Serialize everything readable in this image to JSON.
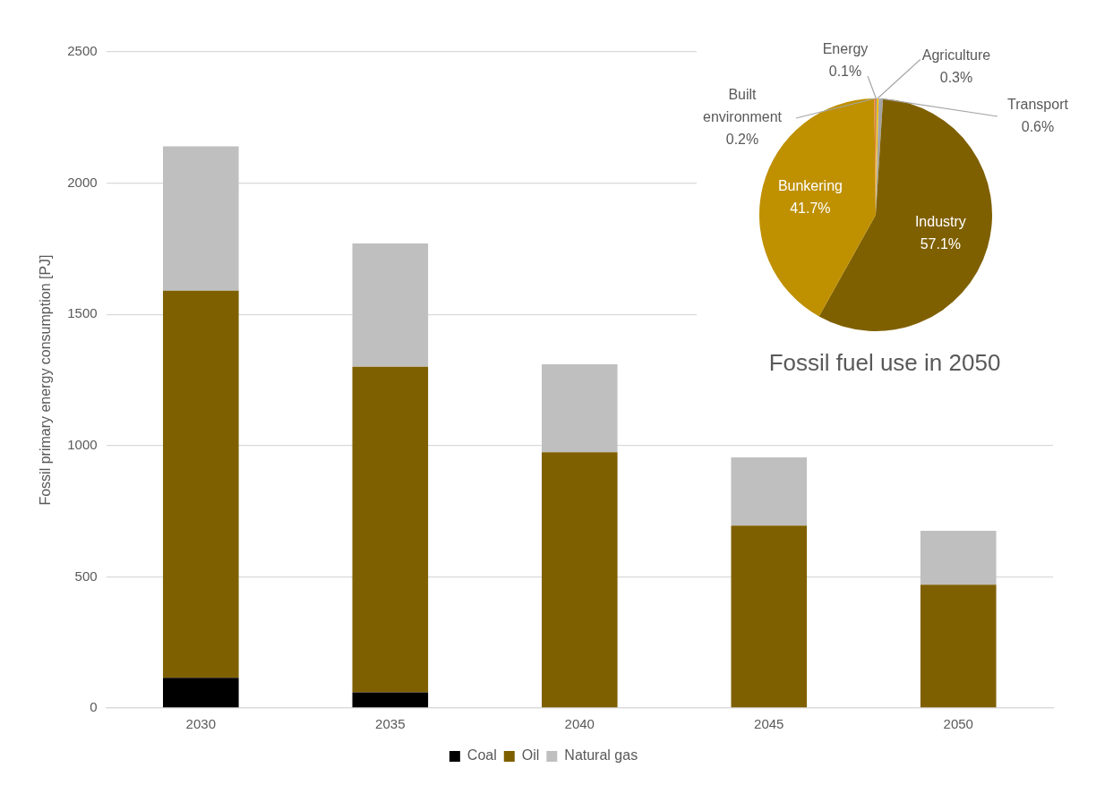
{
  "chart_data": [
    {
      "type": "bar",
      "ylabel": "Fossil primary energy consumption [PJ]",
      "categories": [
        "2030",
        "2035",
        "2040",
        "2045",
        "2050"
      ],
      "stacked": true,
      "series": [
        {
          "name": "Coal",
          "color": "#000000",
          "values": [
            115,
            60,
            0,
            0,
            0
          ]
        },
        {
          "name": "Oil",
          "color": "#7f6000",
          "values": [
            1475,
            1240,
            975,
            695,
            470
          ]
        },
        {
          "name": "Natural gas",
          "color": "#bfbfbf",
          "values": [
            550,
            470,
            335,
            260,
            205
          ]
        }
      ],
      "ylim": [
        0,
        2500
      ],
      "yticks": [
        0,
        500,
        1000,
        1500,
        2000,
        2500
      ],
      "grid": "y",
      "legend": "bottom"
    },
    {
      "type": "pie",
      "title": "Fossil fuel use in 2050",
      "categories": [
        "Energy",
        "Agriculture",
        "Transport",
        "Industry",
        "Bunkering",
        "Built environment"
      ],
      "values": [
        0.1,
        0.3,
        0.6,
        57.1,
        41.7,
        0.2
      ],
      "colors": [
        "#4472c4",
        "#ffc000",
        "#a5a5a5",
        "#7f6000",
        "#bf9000",
        "#ed7d31"
      ],
      "value_labels": [
        "0.1%",
        "0.3%",
        "0.6%",
        "57.1%",
        "41.7%",
        "0.2%"
      ]
    }
  ]
}
